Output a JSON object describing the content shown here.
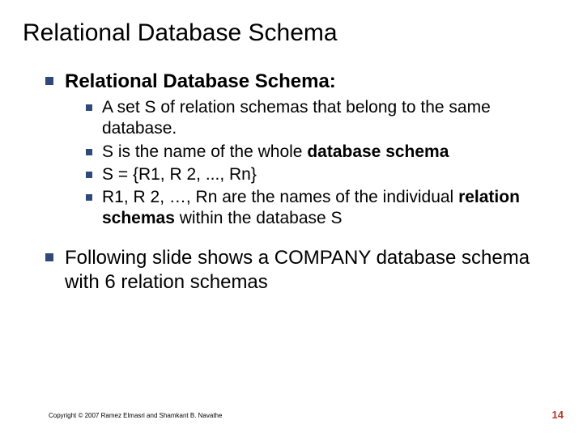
{
  "title": "Relational Database Schema",
  "bullets": {
    "b1_prefix": "Relational Database Schema:",
    "sub1": "A set S of relation schemas that belong to the same database.",
    "sub2_a": "S is the name of the whole ",
    "sub2_b": "database schema",
    "sub3": "S = {R1, R 2, ..., Rn}",
    "sub4_a": "R1, R 2, …, Rn are the names of the individual ",
    "sub4_b": "relation schemas",
    "sub4_c": " within the database S",
    "b2": "Following slide shows a COMPANY database schema with 6 relation schemas"
  },
  "footer": "Copyright © 2007 Ramez Elmasri and Shamkant B. Navathe",
  "page": "14",
  "colors": {
    "bullet": "#2f4978",
    "pagenum": "#b33a2a"
  }
}
